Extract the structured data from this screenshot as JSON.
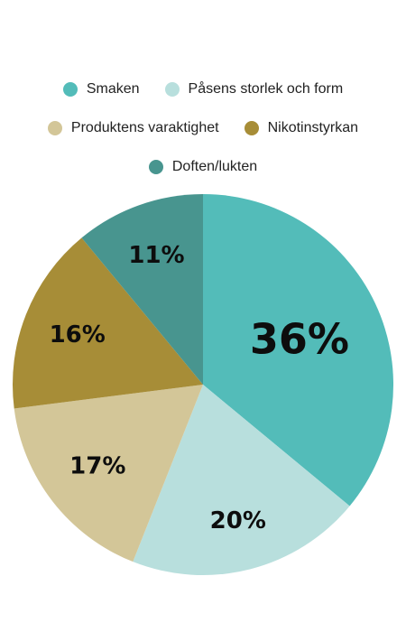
{
  "chart_data": {
    "type": "pie",
    "title": "",
    "slices": [
      {
        "name": "Smaken",
        "value": 36,
        "label": "36%",
        "color": "#53bcb9"
      },
      {
        "name": "Påsens storlek och form",
        "value": 20,
        "label": "20%",
        "color": "#b8dfdd"
      },
      {
        "name": "Produktens varaktighet",
        "value": 17,
        "label": "17%",
        "color": "#d3c698"
      },
      {
        "name": "Nikotinstyrkan",
        "value": 16,
        "label": "16%",
        "color": "#a78d37"
      },
      {
        "name": "Doften/lukten",
        "value": 11,
        "label": "11%",
        "color": "#48958f"
      }
    ],
    "legend": {
      "position": "top"
    }
  }
}
